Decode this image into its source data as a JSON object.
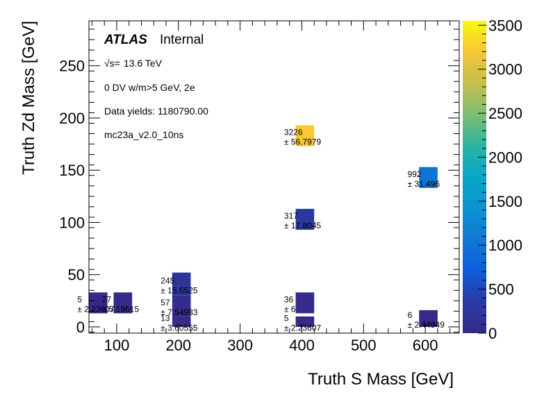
{
  "chart_data": {
    "type": "heatmap",
    "experiment": "ATLAS",
    "experiment_qualifier": "Internal",
    "sqrt_s": "13.6 TeV",
    "selection": "0 DV w/m>5 GeV, 2e",
    "data_yields": "Data yields: 1180790.00",
    "sample": "mc23a_v2.0_10ns",
    "xlabel": "Truth S Mass [GeV]",
    "ylabel": "Truth Zd Mass [GeV]",
    "xlim": [
      55,
      655
    ],
    "ylim": [
      -6,
      293
    ],
    "xticks": [
      100,
      200,
      300,
      400,
      500,
      600
    ],
    "yticks": [
      0,
      50,
      100,
      150,
      200,
      250
    ],
    "zlim": [
      0,
      3550
    ],
    "zticks": [
      0,
      500,
      1000,
      1500,
      2000,
      2500,
      3000,
      3500
    ],
    "bin_width": 30,
    "cells": [
      {
        "x": 70,
        "y": 23,
        "yw": 20,
        "value": 5,
        "label": "5",
        "error": "± 2.23607"
      },
      {
        "x": 110,
        "y": 23,
        "yw": 20,
        "value": 27,
        "label": "27",
        "error": "± 5.19615"
      },
      {
        "x": 205,
        "y": 5,
        "yw": 10,
        "value": 13,
        "label": "13",
        "error": "± 3.60555"
      },
      {
        "x": 205,
        "y": 20,
        "yw": 20,
        "value": 57,
        "label": "57",
        "error": "± 7.54983"
      },
      {
        "x": 205,
        "y": 41,
        "yw": 22,
        "value": 245,
        "label": "245",
        "error": "± 15.6525"
      },
      {
        "x": 405,
        "y": 5,
        "yw": 10,
        "value": 5,
        "label": "5",
        "error": "± 2.23607"
      },
      {
        "x": 405,
        "y": 23,
        "yw": 20,
        "value": 36,
        "label": "36",
        "error": "± 6"
      },
      {
        "x": 405,
        "y": 103,
        "yw": 20,
        "value": 317,
        "label": "317",
        "error": "± 17.8045"
      },
      {
        "x": 405,
        "y": 183,
        "yw": 20,
        "value": 3226,
        "label": "3226",
        "error": "± 56.7979"
      },
      {
        "x": 605,
        "y": 8,
        "yw": 16,
        "value": 6,
        "label": "6",
        "error": "± 2.44949"
      },
      {
        "x": 605,
        "y": 143,
        "yw": 20,
        "value": 992,
        "label": "992",
        "error": "± 31.496"
      }
    ]
  }
}
